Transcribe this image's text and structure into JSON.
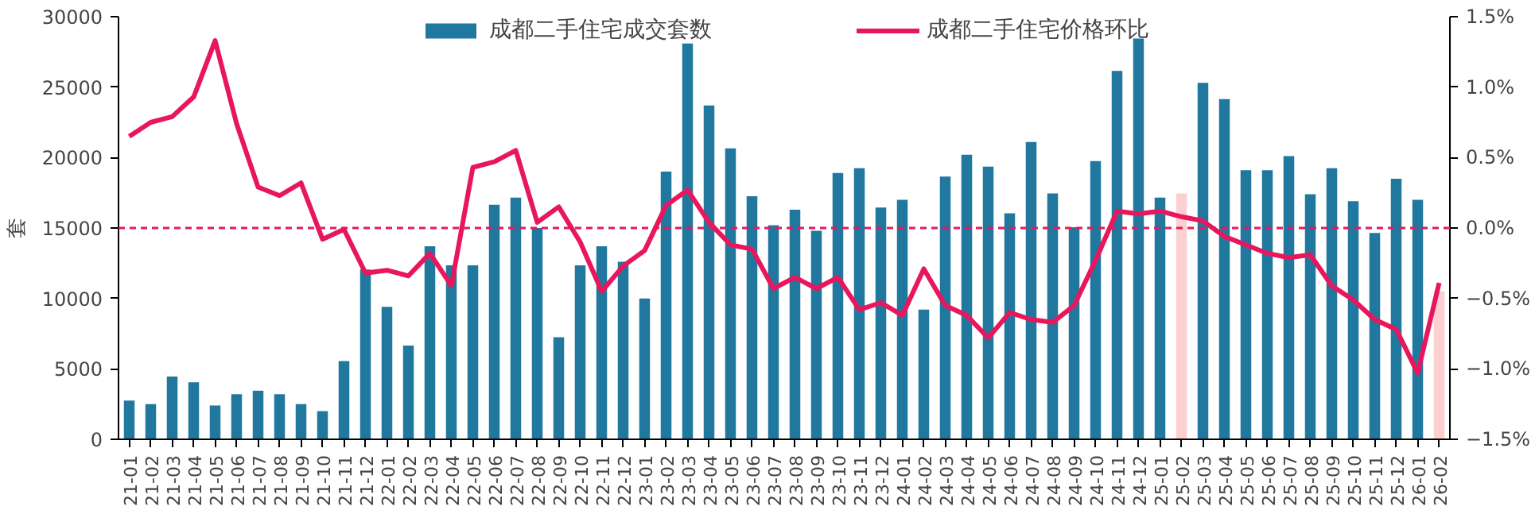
{
  "chart_data": {
    "type": "bar",
    "ylabel": "套",
    "categories": [
      "21-01",
      "21-02",
      "21-03",
      "21-04",
      "21-05",
      "21-06",
      "21-07",
      "21-08",
      "21-09",
      "21-10",
      "21-11",
      "21-12",
      "22-01",
      "22-02",
      "22-03",
      "22-04",
      "22-05",
      "22-06",
      "22-07",
      "22-08",
      "22-09",
      "22-10",
      "22-11",
      "22-12",
      "23-01",
      "23-02",
      "23-03",
      "23-04",
      "23-05",
      "23-06",
      "23-07",
      "23-08",
      "23-09",
      "23-10",
      "23-11",
      "23-12",
      "24-01",
      "24-02",
      "24-03",
      "24-04",
      "24-05",
      "24-06",
      "24-07",
      "24-08",
      "24-09",
      "24-10",
      "24-11",
      "24-12",
      "25-01",
      "25-02",
      "25-03",
      "25-04",
      "25-05",
      "25-06",
      "25-07",
      "25-08",
      "25-09",
      "25-10",
      "25-11",
      "25-12",
      "26-01",
      "26-02"
    ],
    "series": [
      {
        "name": "成都二手住宅成交套数",
        "colors": [
          "#21789f",
          "#21789f",
          "#21789f",
          "#21789f",
          "#21789f",
          "#21789f",
          "#21789f",
          "#21789f",
          "#21789f",
          "#21789f",
          "#21789f",
          "#21789f",
          "#21789f",
          "#21789f",
          "#21789f",
          "#21789f",
          "#21789f",
          "#21789f",
          "#21789f",
          "#21789f",
          "#21789f",
          "#21789f",
          "#21789f",
          "#21789f",
          "#21789f",
          "#21789f",
          "#21789f",
          "#21789f",
          "#21789f",
          "#21789f",
          "#21789f",
          "#21789f",
          "#21789f",
          "#21789f",
          "#21789f",
          "#21789f",
          "#21789f",
          "#21789f",
          "#21789f",
          "#21789f",
          "#21789f",
          "#21789f",
          "#21789f",
          "#21789f",
          "#21789f",
          "#21789f",
          "#21789f",
          "#21789f",
          "#21789f",
          "#fcd0d0",
          "#21789f",
          "#21789f",
          "#21789f",
          "#21789f",
          "#21789f",
          "#21789f",
          "#21789f",
          "#21789f",
          "#21789f",
          "#21789f",
          "#21789f",
          "#fcd0d0"
        ],
        "values": [
          2750,
          2500,
          4450,
          4050,
          2400,
          3200,
          3450,
          3200,
          2500,
          2000,
          5550,
          12050,
          9400,
          6650,
          13700,
          12350,
          12350,
          16650,
          17150,
          15000,
          7250,
          12350,
          13700,
          12600,
          10000,
          19000,
          28100,
          23700,
          20650,
          17250,
          15200,
          16300,
          14800,
          18900,
          19250,
          16450,
          17000,
          9200,
          18650,
          20200,
          19350,
          16050,
          21100,
          17450,
          15050,
          19750,
          26150,
          28450,
          17150,
          17450,
          25300,
          24150,
          19100,
          19100,
          20100,
          17400,
          19250,
          16900,
          14650,
          18500,
          17000,
          10500
        ]
      },
      {
        "name": "成都二手住宅价格环比",
        "type": "line",
        "axis": "y2",
        "color": "#e8175d",
        "values": [
          0.65,
          0.75,
          0.79,
          0.93,
          1.33,
          0.74,
          0.29,
          0.23,
          0.32,
          -0.08,
          -0.01,
          -0.32,
          -0.3,
          -0.34,
          -0.18,
          -0.41,
          0.43,
          0.47,
          0.55,
          0.04,
          0.15,
          -0.1,
          -0.45,
          -0.27,
          -0.16,
          0.16,
          0.27,
          0.04,
          -0.12,
          -0.15,
          -0.43,
          -0.35,
          -0.43,
          -0.35,
          -0.58,
          -0.53,
          -0.62,
          -0.29,
          -0.55,
          -0.62,
          -0.78,
          -0.6,
          -0.65,
          -0.67,
          -0.55,
          -0.23,
          0.12,
          0.1,
          0.12,
          0.08,
          0.05,
          -0.06,
          -0.12,
          -0.18,
          -0.21,
          -0.19,
          -0.41,
          -0.51,
          -0.65,
          -0.72,
          -1.03,
          -0.39
        ]
      }
    ],
    "ylim": [
      0,
      30000
    ],
    "yticks": [
      0,
      5000,
      10000,
      15000,
      20000,
      25000,
      30000
    ],
    "y2lim": [
      -1.5,
      1.5
    ],
    "y2ticks": [
      {
        "value": -1.5,
        "label": "−1.5%"
      },
      {
        "value": -1.0,
        "label": "−1.0%"
      },
      {
        "value": -0.5,
        "label": "−0.5%"
      },
      {
        "value": 0,
        "label": "0.0%"
      },
      {
        "value": 0.5,
        "label": "0.5%"
      },
      {
        "value": 1.0,
        "label": "1.0%"
      },
      {
        "value": 1.5,
        "label": "1.5%"
      }
    ],
    "ref_lines": [
      {
        "axis": "y2",
        "value": 0,
        "color": "#e8175d",
        "line_style": "dashed"
      }
    ],
    "grid": false,
    "legend": "top"
  }
}
